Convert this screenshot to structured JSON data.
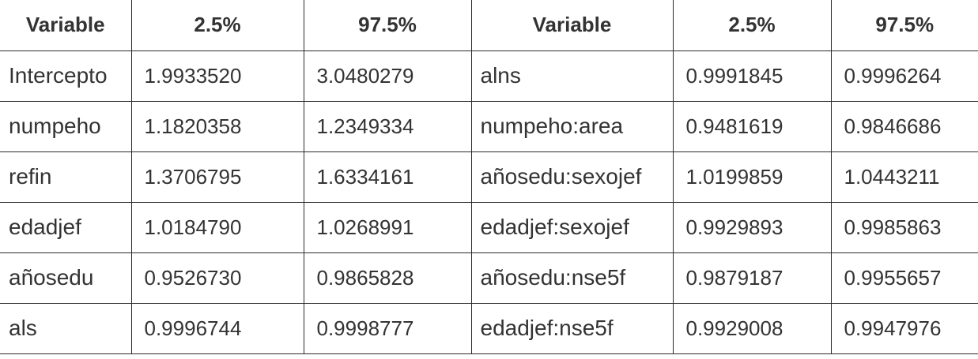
{
  "table": {
    "headers": [
      "Variable",
      "2.5%",
      "97.5%",
      "Variable",
      "2.5%",
      "97.5%"
    ],
    "rows": [
      [
        "Intercepto",
        "1.9933520",
        "3.0480279",
        "alns",
        "0.9991845",
        "0.9996264"
      ],
      [
        "numpeho",
        "1.1820358",
        "1.2349334",
        "numpeho:area",
        "0.9481619",
        "0.9846686"
      ],
      [
        "refin",
        "1.3706795",
        "1.6334161",
        "añosedu:sexojef",
        "1.0199859",
        "1.0443211"
      ],
      [
        "edadjef",
        "1.0184790",
        "1.0268991",
        "edadjef:sexojef",
        "0.9929893",
        "0.9985863"
      ],
      [
        "añosedu",
        "0.9526730",
        "0.9865828",
        "añosedu:nse5f",
        "0.9879187",
        "0.9955657"
      ],
      [
        "als",
        "0.9996744",
        "0.9998777",
        "edadjef:nse5f",
        "0.9929008",
        "0.9947976"
      ]
    ]
  }
}
